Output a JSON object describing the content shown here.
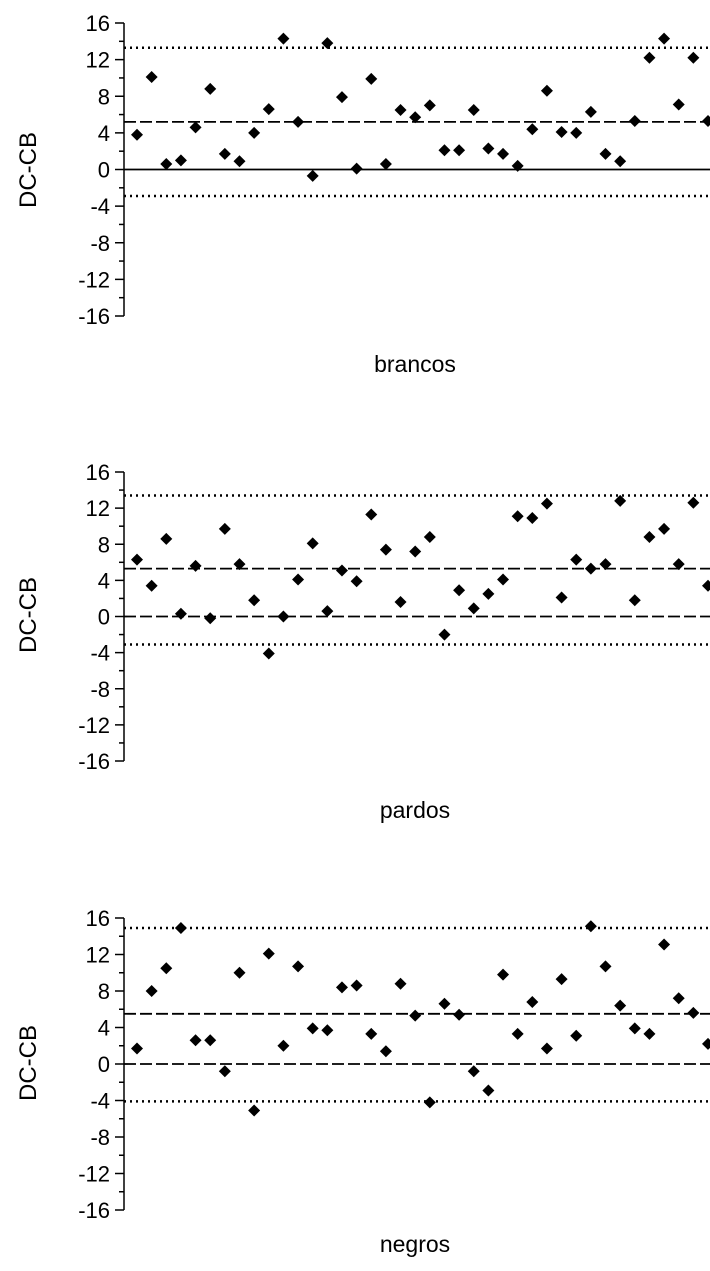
{
  "chart_data": [
    {
      "type": "scatter",
      "xlabel": "brancos",
      "ylabel": "DC-CB",
      "ylim": [
        -16,
        16
      ],
      "yticks": [
        "16",
        "12",
        "8",
        "4",
        "0",
        "-4",
        "-8",
        "-12",
        "-16"
      ],
      "reference_lines": [
        {
          "y": 13.3,
          "style": "dotted"
        },
        {
          "y": 5.2,
          "style": "dashed"
        },
        {
          "y": 0,
          "style": "solid"
        },
        {
          "y": -2.9,
          "style": "dotted"
        }
      ],
      "values": [
        3.8,
        10.1,
        0.6,
        1.0,
        4.6,
        8.8,
        1.7,
        0.9,
        4.0,
        6.6,
        14.3,
        5.2,
        -0.7,
        13.8,
        7.9,
        0.1,
        9.9,
        0.6,
        6.5,
        5.7,
        7.0,
        2.1,
        2.1,
        6.5,
        2.3,
        1.7,
        0.4,
        4.4,
        8.6,
        4.1,
        4.0,
        6.3,
        1.7,
        0.9,
        5.3,
        12.2,
        14.3,
        7.1,
        12.2,
        5.3
      ]
    },
    {
      "type": "scatter",
      "xlabel": "pardos",
      "ylabel": "DC-CB",
      "ylim": [
        -16,
        16
      ],
      "yticks": [
        "16",
        "12",
        "8",
        "4",
        "0",
        "-4",
        "-8",
        "-12",
        "-16"
      ],
      "reference_lines": [
        {
          "y": 13.4,
          "style": "dotted"
        },
        {
          "y": 5.3,
          "style": "dashed"
        },
        {
          "y": 0,
          "style": "dashed"
        },
        {
          "y": -3.1,
          "style": "dotted"
        }
      ],
      "values": [
        6.3,
        3.4,
        8.6,
        0.3,
        5.6,
        -0.2,
        9.7,
        5.8,
        1.8,
        -4.1,
        0.0,
        4.1,
        8.1,
        0.6,
        5.1,
        3.9,
        11.3,
        7.4,
        1.6,
        7.2,
        8.8,
        -2.0,
        2.9,
        0.9,
        2.5,
        4.1,
        11.1,
        10.9,
        12.5,
        2.1,
        6.3,
        5.3,
        5.8,
        12.8,
        1.8,
        8.8,
        9.7,
        5.8,
        12.6,
        3.4
      ]
    },
    {
      "type": "scatter",
      "xlabel": "negros",
      "ylabel": "DC-CB",
      "ylim": [
        -16,
        16
      ],
      "yticks": [
        "16",
        "12",
        "8",
        "4",
        "0",
        "-4",
        "-8",
        "-12",
        "-16"
      ],
      "reference_lines": [
        {
          "y": 14.9,
          "style": "dotted"
        },
        {
          "y": 5.5,
          "style": "dashed"
        },
        {
          "y": 0,
          "style": "dashed"
        },
        {
          "y": -4.1,
          "style": "dotted"
        }
      ],
      "values": [
        1.7,
        8.0,
        10.5,
        14.9,
        2.6,
        2.6,
        -0.8,
        10.0,
        -5.1,
        12.1,
        2.0,
        10.7,
        3.9,
        3.7,
        8.4,
        8.6,
        3.3,
        1.4,
        8.8,
        5.3,
        -4.2,
        6.6,
        5.4,
        -0.8,
        -2.9,
        9.8,
        3.3,
        6.8,
        1.7,
        9.3,
        3.1,
        15.1,
        10.7,
        6.4,
        3.9,
        3.3,
        13.1,
        7.2,
        5.6,
        2.2
      ]
    }
  ]
}
